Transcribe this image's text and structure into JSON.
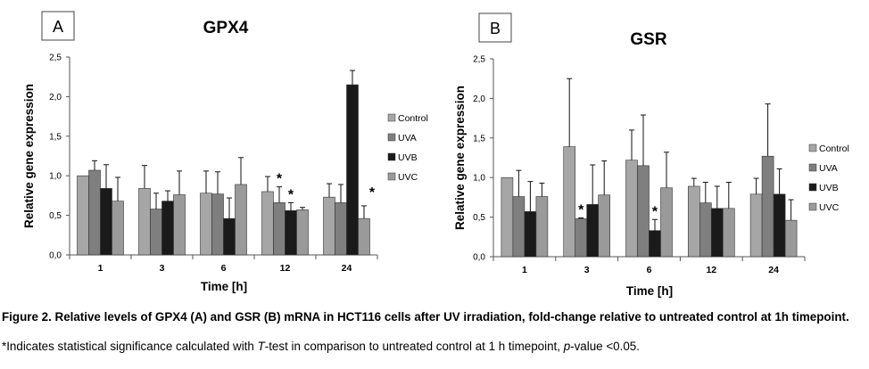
{
  "chart_data": [
    {
      "type": "bar",
      "panel_label": "A",
      "title": "GPX4",
      "xlabel": "Time [h]",
      "ylabel": "Relative gene expression",
      "ylim": [
        0,
        2.5
      ],
      "yticks": [
        "0,0",
        "0,5",
        "1,0",
        "1,5",
        "2,0",
        "2,5"
      ],
      "categories": [
        "1",
        "3",
        "6",
        "12",
        "24"
      ],
      "legend_position": "right",
      "series": [
        {
          "name": "Control",
          "color": "#a6a6a6",
          "values": [
            1.0,
            0.84,
            0.78,
            0.8,
            0.73
          ],
          "errors": [
            0.0,
            0.29,
            0.28,
            0.19,
            0.17
          ]
        },
        {
          "name": "UVA",
          "color": "#7f7f7f",
          "values": [
            1.07,
            0.58,
            0.77,
            0.66,
            0.66
          ],
          "errors": [
            0.12,
            0.2,
            0.28,
            0.2,
            0.23
          ]
        },
        {
          "name": "UVB",
          "color": "#1a1a1a",
          "values": [
            0.84,
            0.68,
            0.46,
            0.56,
            2.15
          ],
          "errors": [
            0.3,
            0.13,
            0.26,
            0.1,
            0.18
          ]
        },
        {
          "name": "UVC",
          "color": "#9a9a9a",
          "values": [
            0.68,
            0.76,
            0.89,
            0.57,
            0.46
          ],
          "errors": [
            0.3,
            0.3,
            0.34,
            0.03,
            0.16
          ]
        }
      ],
      "significance": [
        {
          "category": "12",
          "series": "UVA",
          "label": "*"
        },
        {
          "category": "12",
          "series": "UVB",
          "label": "*"
        },
        {
          "category": "24",
          "series": "UVC",
          "label": "*"
        }
      ]
    },
    {
      "type": "bar",
      "panel_label": "B",
      "title": "GSR",
      "xlabel": "Time [h]",
      "ylabel": "Relative gene expression",
      "ylim": [
        0,
        2.5
      ],
      "yticks": [
        "0,0",
        "0,5",
        "1,0",
        "1,5",
        "2,0",
        "2,5"
      ],
      "categories": [
        "1",
        "3",
        "6",
        "12",
        "24"
      ],
      "legend_position": "right",
      "series": [
        {
          "name": "Control",
          "color": "#a6a6a6",
          "values": [
            1.0,
            1.39,
            1.22,
            0.89,
            0.79
          ],
          "errors": [
            0.0,
            0.86,
            0.38,
            0.1,
            0.2
          ]
        },
        {
          "name": "UVA",
          "color": "#7f7f7f",
          "values": [
            0.76,
            0.48,
            1.15,
            0.68,
            1.27
          ],
          "errors": [
            0.33,
            0.01,
            0.64,
            0.26,
            0.66
          ]
        },
        {
          "name": "UVB",
          "color": "#1a1a1a",
          "values": [
            0.57,
            0.66,
            0.33,
            0.61,
            0.79
          ],
          "errors": [
            0.38,
            0.5,
            0.14,
            0.28,
            0.32
          ]
        },
        {
          "name": "UVC",
          "color": "#9a9a9a",
          "values": [
            0.76,
            0.78,
            0.87,
            0.61,
            0.46
          ],
          "errors": [
            0.17,
            0.43,
            0.45,
            0.33,
            0.26
          ]
        }
      ],
      "significance": [
        {
          "category": "3",
          "series": "UVA",
          "label": "*"
        },
        {
          "category": "6",
          "series": "UVB",
          "label": "*"
        }
      ]
    }
  ],
  "caption": {
    "main": "Figure 2. Relative levels of GPX4 (A) and GSR (B) mRNA in HCT116 cells after UV irradiation, fold-change relative to untreated control at 1h timepoint.",
    "note_before_t": "*Indicates statistical significance calculated with ",
    "note_t": "T",
    "note_middle": "-test in comparison to untreated control at 1 h timepoint, ",
    "note_p": "p",
    "note_after_p": "-value <0.05."
  }
}
